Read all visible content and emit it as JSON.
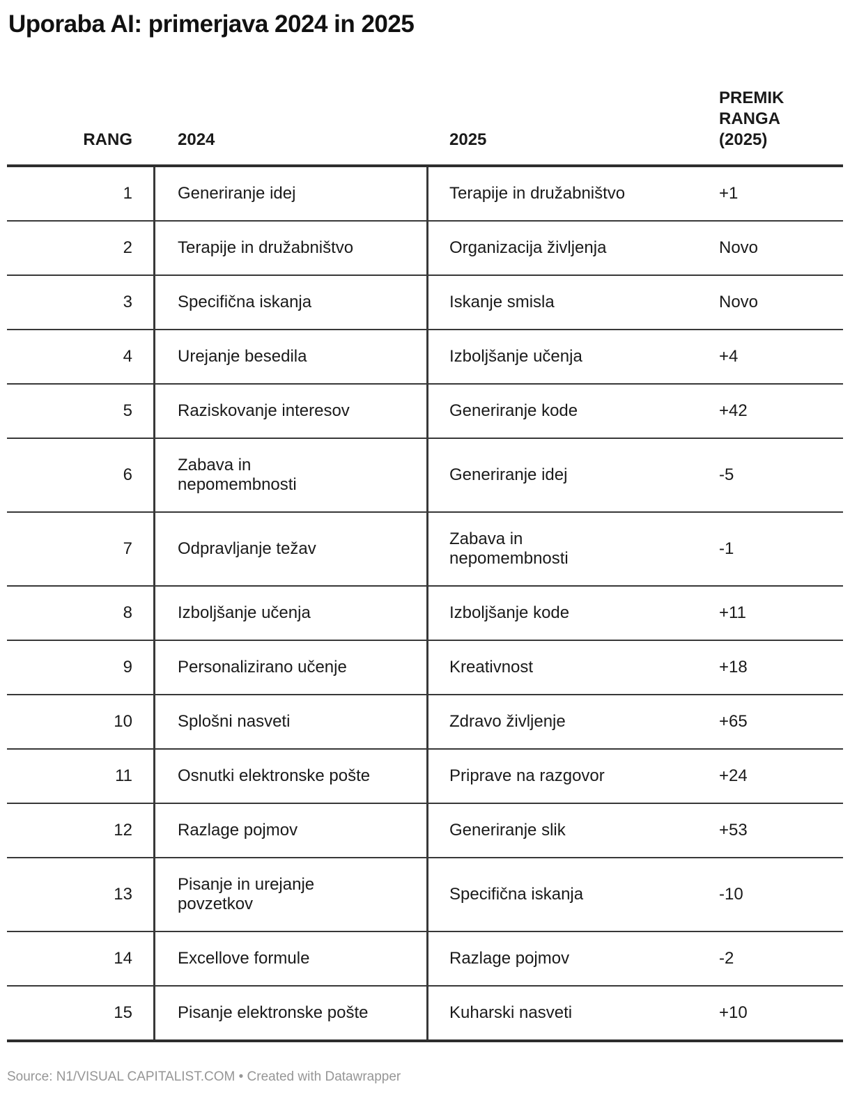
{
  "title": "Uporaba AI: primerjava 2024 in 2025",
  "colors": {
    "text": "#1a1a1a",
    "rule_thick": "#2e2e2e",
    "rule_thin": "#383838",
    "footer_text": "#969696"
  },
  "chart_data": {
    "type": "table",
    "title": "Uporaba AI: primerjava 2024 in 2025",
    "columns": [
      "RANG",
      "2024",
      "2025",
      "PREMIK RANGA (2025)"
    ],
    "rows": [
      [
        "1",
        "Generiranje idej",
        "Terapije in družabništvo",
        "+1"
      ],
      [
        "2",
        "Terapije in družabništvo",
        "Organizacija življenja",
        "Novo"
      ],
      [
        "3",
        "Specifična iskanja",
        "Iskanje smisla",
        "Novo"
      ],
      [
        "4",
        "Urejanje besedila",
        "Izboljšanje učenja",
        "+4"
      ],
      [
        "5",
        "Raziskovanje interesov",
        "Generiranje kode",
        "+42"
      ],
      [
        "6",
        "Zabava in nepomembnosti",
        "Generiranje idej",
        "-5"
      ],
      [
        "7",
        "Odpravljanje težav",
        "Zabava in nepomembnosti",
        "-1"
      ],
      [
        "8",
        "Izboljšanje učenja",
        "Izboljšanje kode",
        "+11"
      ],
      [
        "9",
        "Personalizirano učenje",
        "Kreativnost",
        "+18"
      ],
      [
        "10",
        "Splošni nasveti",
        "Zdravo življenje",
        "+65"
      ],
      [
        "11",
        "Osnutki elektronske pošte",
        "Priprave na razgovor",
        "+24"
      ],
      [
        "12",
        "Razlage pojmov",
        "Generiranje slik",
        "+53"
      ],
      [
        "13",
        "Pisanje in urejanje povzetkov",
        "Specifična iskanja",
        "-10"
      ],
      [
        "14",
        "Excellove formule",
        "Razlage pojmov",
        "-2"
      ],
      [
        "15",
        "Pisanje elektronske pošte",
        "Kuharski nasveti",
        "+10"
      ]
    ]
  },
  "table": {
    "headers": {
      "rank": "RANG",
      "y2024": "2024",
      "y2025": "2025",
      "shift": "PREMIK\nRANGA\n(2025)"
    },
    "rows": [
      {
        "rank": "1",
        "y2024": "Generiranje idej",
        "y2025": "Terapije in družabništvo",
        "shift": "+1"
      },
      {
        "rank": "2",
        "y2024": "Terapije in družabništvo",
        "y2025": "Organizacija življenja",
        "shift": "Novo"
      },
      {
        "rank": "3",
        "y2024": "Specifična iskanja",
        "y2025": "Iskanje smisla",
        "shift": "Novo"
      },
      {
        "rank": "4",
        "y2024": "Urejanje besedila",
        "y2025": "Izboljšanje učenja",
        "shift": "+4"
      },
      {
        "rank": "5",
        "y2024": "Raziskovanje interesov",
        "y2025": "Generiranje kode",
        "shift": "+42"
      },
      {
        "rank": "6",
        "y2024": "Zabava in\nnepomembnosti",
        "y2025": "Generiranje idej",
        "shift": "-5"
      },
      {
        "rank": "7",
        "y2024": "Odpravljanje težav",
        "y2025": "Zabava in\nnepomembnosti",
        "shift": "-1"
      },
      {
        "rank": "8",
        "y2024": "Izboljšanje učenja",
        "y2025": "Izboljšanje kode",
        "shift": "+11"
      },
      {
        "rank": "9",
        "y2024": "Personalizirano učenje",
        "y2025": "Kreativnost",
        "shift": "+18"
      },
      {
        "rank": "10",
        "y2024": "Splošni nasveti",
        "y2025": "Zdravo življenje",
        "shift": "+65"
      },
      {
        "rank": "11",
        "y2024": "Osnutki elektronske pošte",
        "y2025": "Priprave na razgovor",
        "shift": "+24"
      },
      {
        "rank": "12",
        "y2024": "Razlage pojmov",
        "y2025": "Generiranje slik",
        "shift": "+53"
      },
      {
        "rank": "13",
        "y2024": "Pisanje in urejanje\npovzetkov",
        "y2025": "Specifična iskanja",
        "shift": "-10"
      },
      {
        "rank": "14",
        "y2024": "Excellove formule",
        "y2025": "Razlage pojmov",
        "shift": "-2"
      },
      {
        "rank": "15",
        "y2024": "Pisanje elektronske pošte",
        "y2025": "Kuharski nasveti",
        "shift": "+10"
      }
    ]
  },
  "footer": {
    "source": "Source: N1/VISUAL CAPITALIST.COM • Created with Datawrapper"
  }
}
